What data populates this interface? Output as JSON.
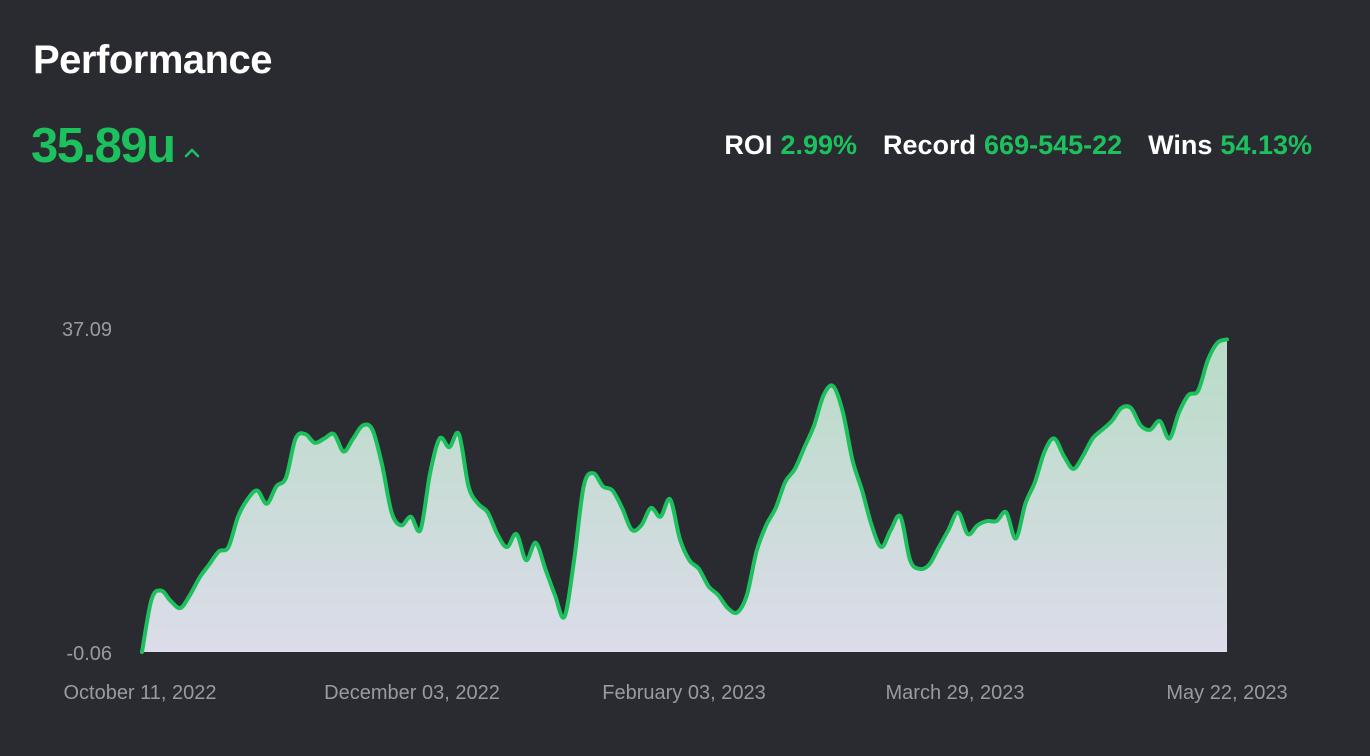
{
  "header": {
    "title": "Performance",
    "units": "35.89u",
    "trend_icon": "chevron-up-icon"
  },
  "stats": [
    {
      "label": "ROI",
      "value": "2.99%"
    },
    {
      "label": "Record",
      "value": "669-545-22"
    },
    {
      "label": "Wins",
      "value": "54.13%"
    }
  ],
  "colors": {
    "background": "#2a2a31",
    "accent": "#1cc15e",
    "axis_text": "#9a9aa3",
    "fill_top": "#b8dcc6",
    "fill_bottom": "#dcdcea"
  },
  "chart_data": {
    "type": "area",
    "title": "",
    "xlabel": "",
    "ylabel": "",
    "ylim": [
      -0.06,
      37.09
    ],
    "y_tick_labels": [
      "37.09",
      "-0.06"
    ],
    "x_tick_labels": [
      "October 11, 2022",
      "December 03, 2022",
      "February 03, 2023",
      "March 29, 2023",
      "May 22, 2023"
    ],
    "x_start": "2022-10-11",
    "x_end": "2023-05-22",
    "grid": false,
    "legend": "none",
    "series": [
      {
        "values": [
          -0.06,
          6.0,
          7.0,
          5.8,
          5.0,
          6.5,
          8.5,
          10.0,
          11.5,
          12.0,
          15.5,
          17.5,
          18.5,
          17.0,
          19.0,
          20.0,
          24.5,
          25.0,
          24.0,
          24.5,
          25.0,
          23.0,
          24.5,
          26.0,
          25.5,
          21.5,
          16.0,
          14.5,
          15.5,
          14.0,
          20.5,
          24.5,
          23.5,
          25.0,
          19.0,
          17.0,
          16.0,
          13.5,
          12.0,
          13.5,
          10.5,
          12.5,
          9.5,
          6.5,
          4.0,
          10.5,
          19.0,
          20.5,
          19.0,
          18.5,
          16.5,
          14.0,
          14.5,
          16.5,
          15.5,
          17.5,
          13.0,
          10.5,
          9.5,
          7.5,
          6.5,
          5.0,
          4.5,
          6.5,
          11.5,
          14.5,
          16.5,
          19.5,
          21.0,
          23.5,
          26.0,
          29.5,
          30.5,
          27.5,
          22.0,
          18.5,
          14.5,
          12.0,
          14.0,
          15.5,
          10.5,
          9.5,
          10.0,
          12.0,
          14.0,
          16.0,
          13.5,
          14.5,
          15.0,
          15.0,
          16.0,
          13.0,
          17.0,
          19.5,
          23.0,
          24.5,
          22.5,
          21.0,
          22.5,
          24.5,
          25.5,
          26.5,
          28.0,
          28.0,
          26.0,
          25.5,
          26.5,
          24.5,
          27.5,
          29.5,
          30.0,
          33.5,
          35.5,
          35.89
        ]
      }
    ]
  }
}
